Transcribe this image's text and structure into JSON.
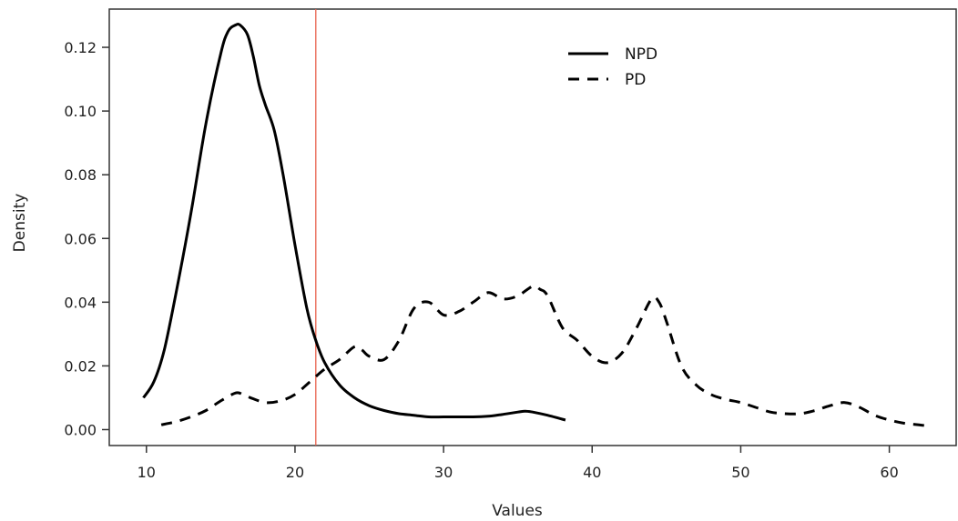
{
  "chart_data": {
    "type": "line",
    "xlabel": "Values",
    "ylabel": "Density",
    "xlim": [
      7.5,
      64.5
    ],
    "ylim": [
      -0.005,
      0.132
    ],
    "x_ticks": [
      10,
      20,
      30,
      40,
      50,
      60
    ],
    "y_ticks": [
      0.0,
      0.02,
      0.04,
      0.06,
      0.08,
      0.1,
      0.12
    ],
    "y_tick_labels": [
      "0.00",
      "0.02",
      "0.04",
      "0.06",
      "0.08",
      "0.10",
      "0.12"
    ],
    "x_tick_labels": [
      "10",
      "20",
      "30",
      "40",
      "50",
      "60"
    ],
    "grid": false,
    "legend_position": "top-center",
    "threshold": {
      "x": 21.4,
      "color": "#e8604c"
    },
    "series": [
      {
        "name": "NPD",
        "style": "solid",
        "color": "#000000",
        "x": [
          9.8,
          10.5,
          11.2,
          12.0,
          13.0,
          14.0,
          15.0,
          15.5,
          16.0,
          16.3,
          16.8,
          17.2,
          17.6,
          18.0,
          18.6,
          19.2,
          20.0,
          20.8,
          21.4,
          22.0,
          23.0,
          24.0,
          25.0,
          26.0,
          27.0,
          28.0,
          29.0,
          30.0,
          31.0,
          32.0,
          33.0,
          34.0,
          35.0,
          35.5,
          36.0,
          37.0,
          38.2
        ],
        "y": [
          0.01,
          0.015,
          0.025,
          0.043,
          0.068,
          0.096,
          0.118,
          0.125,
          0.127,
          0.127,
          0.124,
          0.117,
          0.108,
          0.102,
          0.094,
          0.08,
          0.058,
          0.038,
          0.028,
          0.021,
          0.014,
          0.01,
          0.0075,
          0.006,
          0.005,
          0.0045,
          0.004,
          0.004,
          0.004,
          0.004,
          0.0042,
          0.0048,
          0.0055,
          0.0058,
          0.0055,
          0.0045,
          0.003
        ]
      },
      {
        "name": "PD",
        "style": "dashed",
        "color": "#000000",
        "x": [
          11.0,
          12.0,
          13.0,
          14.0,
          15.0,
          16.0,
          16.5,
          17.0,
          18.0,
          19.0,
          20.0,
          21.0,
          22.0,
          23.0,
          24.0,
          24.5,
          25.0,
          26.0,
          27.0,
          28.0,
          29.0,
          30.0,
          31.0,
          32.0,
          33.0,
          34.0,
          35.0,
          36.0,
          36.5,
          37.0,
          38.0,
          39.0,
          40.0,
          41.0,
          42.0,
          43.0,
          44.0,
          44.5,
          45.0,
          46.0,
          47.0,
          48.0,
          49.0,
          50.0,
          51.0,
          52.0,
          53.0,
          54.0,
          55.0,
          56.0,
          57.0,
          58.0,
          59.0,
          60.0,
          61.0,
          62.0,
          62.5
        ],
        "y": [
          0.0015,
          0.0025,
          0.004,
          0.006,
          0.009,
          0.0115,
          0.011,
          0.01,
          0.0085,
          0.009,
          0.011,
          0.015,
          0.019,
          0.022,
          0.026,
          0.025,
          0.023,
          0.022,
          0.028,
          0.038,
          0.04,
          0.036,
          0.037,
          0.04,
          0.043,
          0.041,
          0.042,
          0.045,
          0.044,
          0.042,
          0.032,
          0.028,
          0.023,
          0.021,
          0.024,
          0.032,
          0.041,
          0.04,
          0.034,
          0.02,
          0.014,
          0.011,
          0.0095,
          0.0085,
          0.007,
          0.0055,
          0.005,
          0.005,
          0.006,
          0.0075,
          0.0085,
          0.007,
          0.0045,
          0.003,
          0.002,
          0.0015,
          0.0012
        ]
      }
    ]
  }
}
